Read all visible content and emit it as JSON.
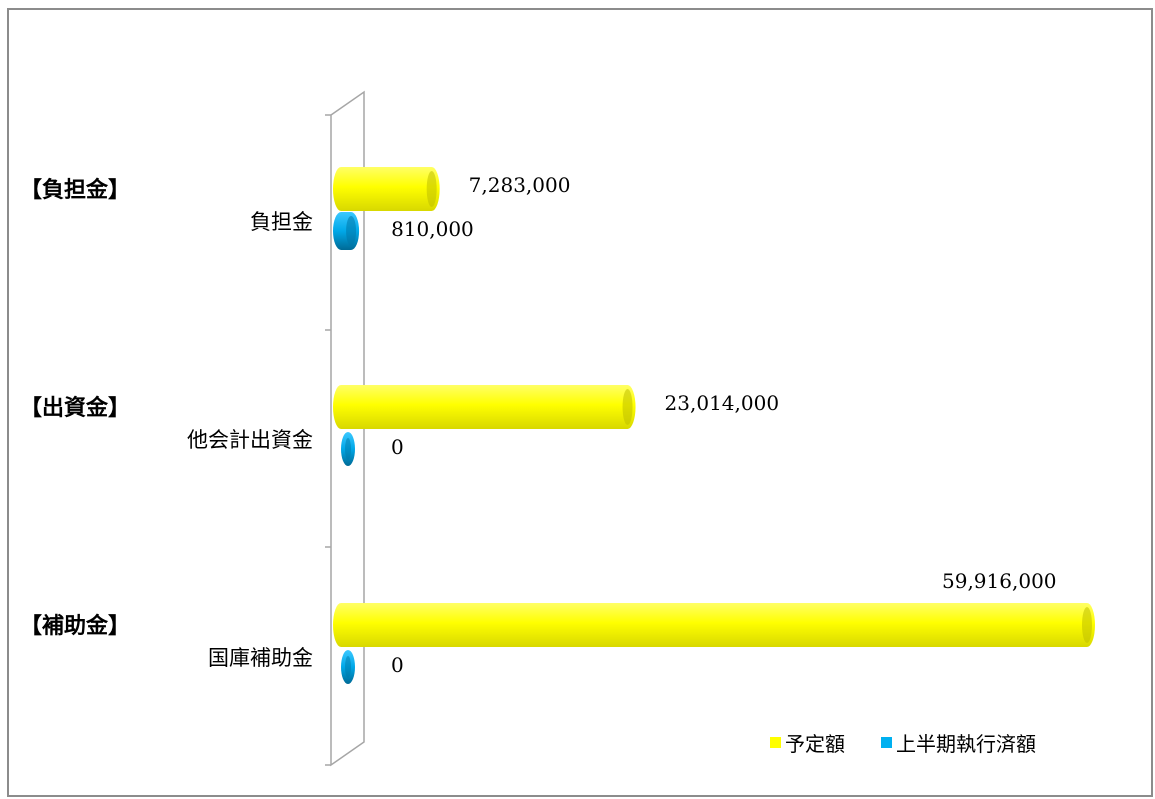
{
  "chart_data": {
    "type": "bar",
    "orientation": "horizontal",
    "three_d": true,
    "groups": [
      {
        "label": "【負担金】",
        "categories": [
          "負担金"
        ]
      },
      {
        "label": "【出資金】",
        "categories": [
          "他会計出資金"
        ]
      },
      {
        "label": "【補助金】",
        "categories": [
          "国庫補助金"
        ]
      }
    ],
    "categories": [
      "負担金",
      "他会計出資金",
      "国庫補助金"
    ],
    "series": [
      {
        "name": "予定額",
        "color": "#ffff00",
        "values": [
          7283000,
          23014000,
          59916000
        ],
        "value_labels": [
          "7,283,000",
          "23,014,000",
          "59,916,000"
        ]
      },
      {
        "name": "上半期執行済額",
        "color": "#00b0f0",
        "values": [
          810000,
          0,
          0
        ],
        "value_labels": [
          "810,000",
          "0",
          "0"
        ]
      }
    ],
    "xlim": [
      0,
      60000000
    ],
    "grid": false,
    "legend_position": "bottom-right"
  }
}
